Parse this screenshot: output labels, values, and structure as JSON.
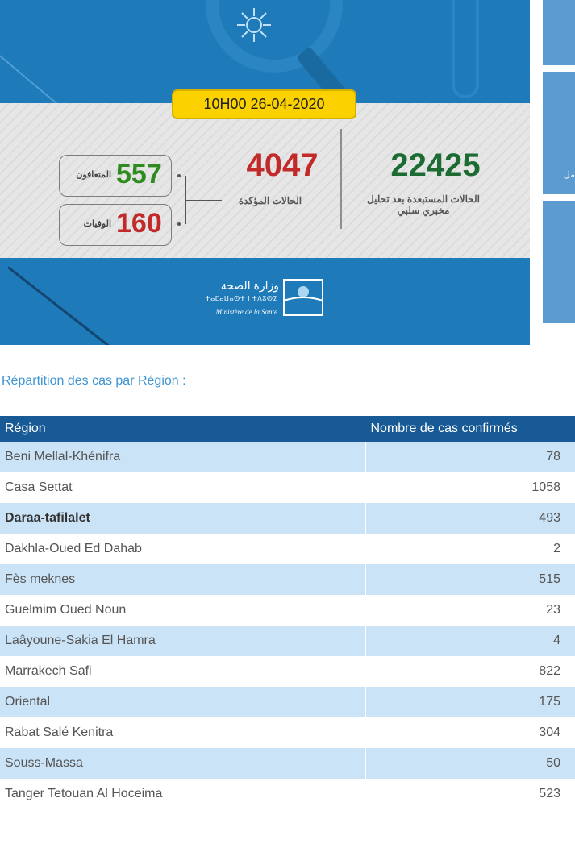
{
  "infographic": {
    "date_time": "10H00  26-04-2020",
    "excluded": {
      "value": "22425",
      "label": "الحالات المستبعدة بعد تحليل مخبري سلبي"
    },
    "confirmed": {
      "value": "4047",
      "label": "الحالات المؤكدة"
    },
    "recovered": {
      "value": "557",
      "label": "المتعافون"
    },
    "deaths": {
      "value": "160",
      "label": "الوفيات"
    },
    "ministry": {
      "name_ar": "وزارة الصحة",
      "name_tifinagh": "ⵜⴰⵎⴰⵡⴰⵙⵜ ⵏ ⵜⴷⵓⵙⵉ",
      "name_fr": "Ministère de la Santé"
    },
    "colors": {
      "blue": "#1e7ab8",
      "badge": "#fbd100",
      "green": "#1b6b32",
      "red": "#c22a2a"
    }
  },
  "side_panel": {
    "partial_text": "مل"
  },
  "section_title": "Répartition des cas par Région :",
  "table": {
    "headers": [
      "Région",
      "Nombre de cas confirmés"
    ],
    "rows": [
      {
        "region": "Beni Mellal-Khénifra",
        "count": "78"
      },
      {
        "region": "Casa Settat",
        "count": "1058"
      },
      {
        "region": "Daraa-tafilalet",
        "count": "493"
      },
      {
        "region": "Dakhla-Oued Ed Dahab",
        "count": "2"
      },
      {
        "region": "Fès meknes",
        "count": "515"
      },
      {
        "region": "Guelmim Oued Noun",
        "count": "23"
      },
      {
        "region": "Laâyoune-Sakia El Hamra",
        "count": "4"
      },
      {
        "region": "Marrakech Safi",
        "count": "822"
      },
      {
        "region": "Oriental",
        "count": "175"
      },
      {
        "region": "Rabat Salé Kenitra",
        "count": "304"
      },
      {
        "region": "Souss-Massa",
        "count": "50"
      },
      {
        "region": "Tanger Tetouan Al Hoceima",
        "count": "523"
      }
    ]
  }
}
